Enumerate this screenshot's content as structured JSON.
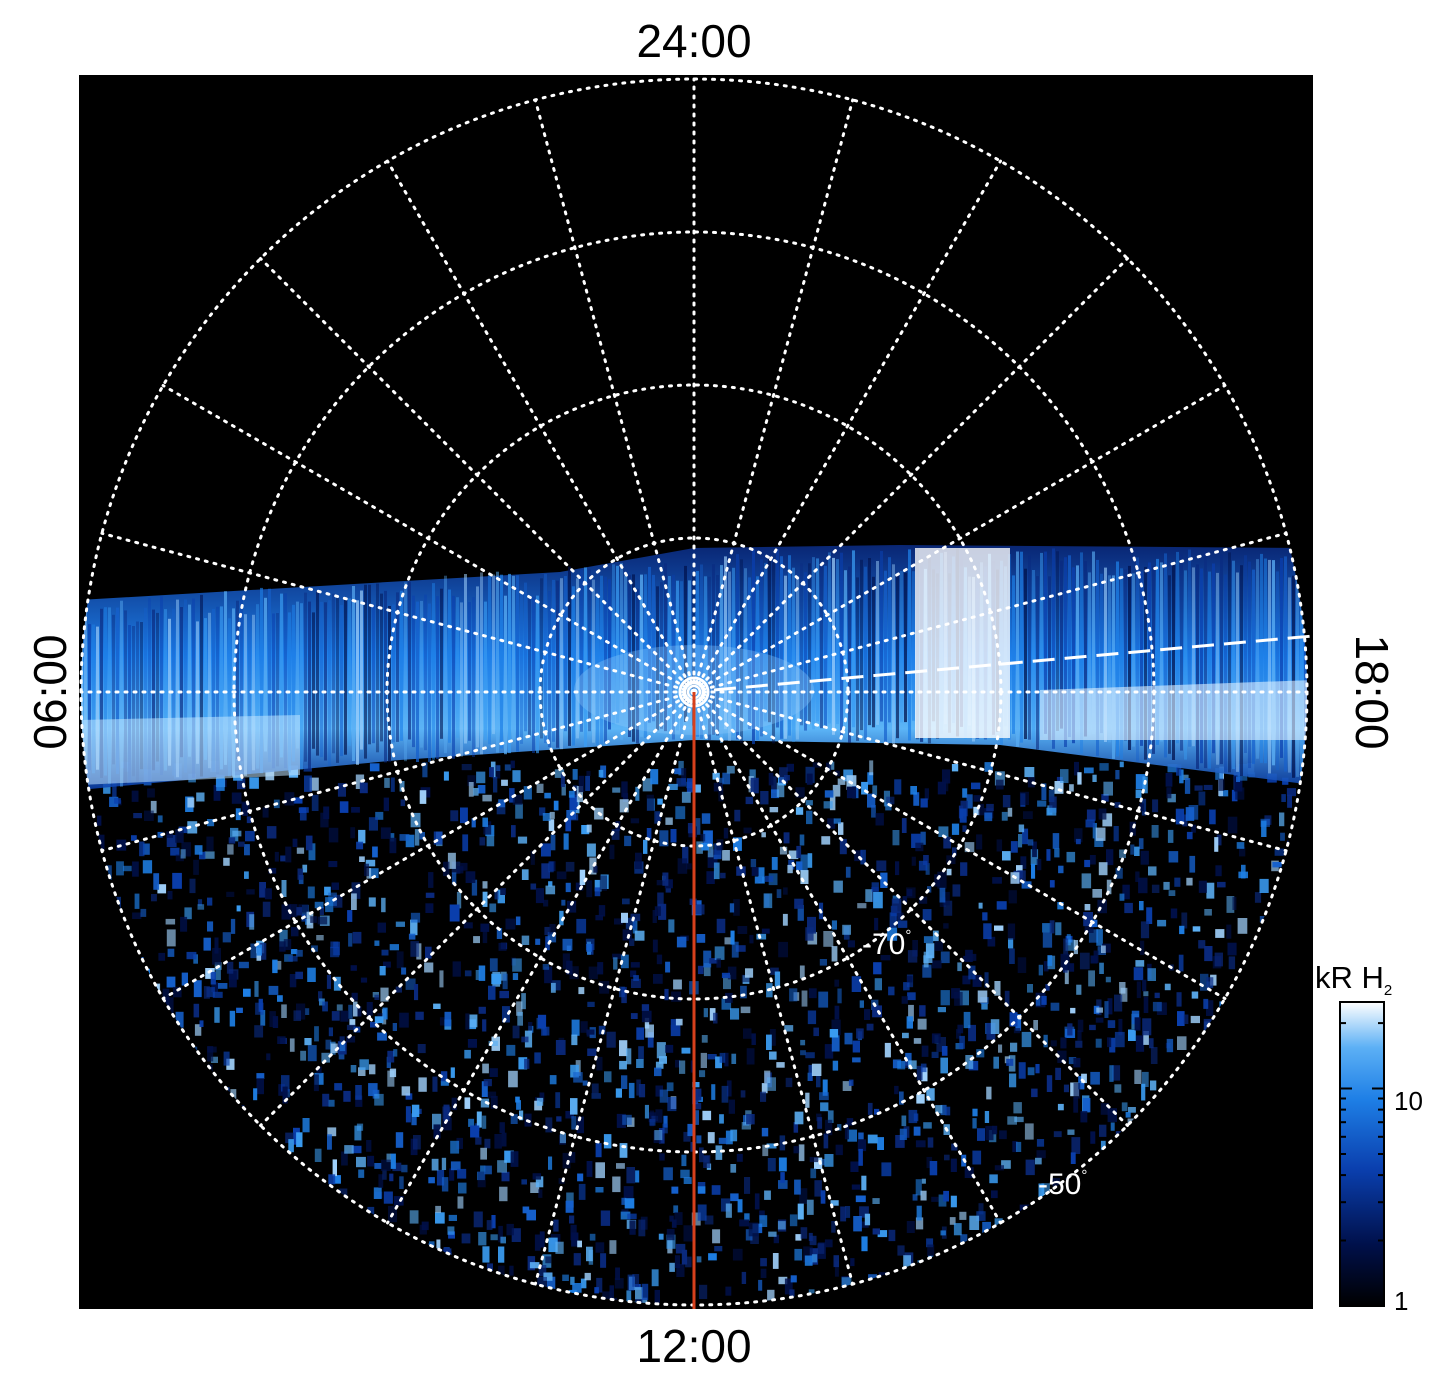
{
  "local_time_labels": {
    "top": "24:00",
    "bottom": "12:00",
    "left": "06:00",
    "right": "18:00"
  },
  "latitude_labels": {
    "lat_70": "-70",
    "lat_50": "-50",
    "degree_symbol": "°"
  },
  "colorbar": {
    "title_main": "kR H",
    "title_sub": "2",
    "tick_labels": [
      "10",
      "1"
    ],
    "scale": "log",
    "range": [
      1,
      25
    ],
    "colors": [
      "#000000",
      "#00104a",
      "#0a3fae",
      "#1e7fe6",
      "#5cb0f5",
      "#ffffff"
    ]
  },
  "colors": {
    "background": "#000000",
    "grid": "#ffffff",
    "meridian_line": "#d7401c"
  }
}
